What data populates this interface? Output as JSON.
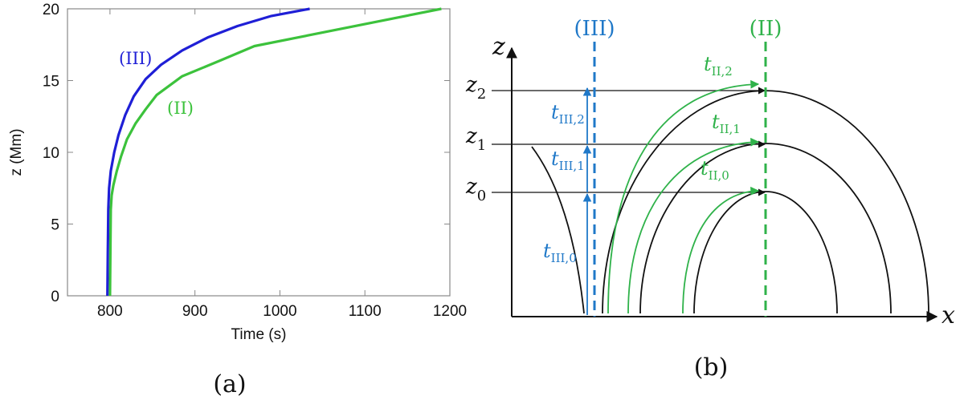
{
  "chart_data": [
    {
      "type": "line",
      "panel_label": "(a)",
      "title": "",
      "xlabel": "Time (s)",
      "ylabel": "z (Mm)",
      "xlim": [
        750,
        1200
      ],
      "ylim": [
        0,
        20
      ],
      "xticks": [
        800,
        900,
        1000,
        1100,
        1200
      ],
      "yticks": [
        0,
        5,
        10,
        15,
        20
      ],
      "grid": false,
      "series": [
        {
          "name": "(III)",
          "color": "#1f1fd6",
          "x": [
            797,
            797.5,
            798,
            799,
            801,
            805,
            810,
            818,
            828,
            842,
            860,
            885,
            915,
            950,
            990,
            1035
          ],
          "y": [
            0,
            3,
            6,
            7.5,
            8.7,
            10,
            11.2,
            12.6,
            13.9,
            15.1,
            16.1,
            17.1,
            18.0,
            18.8,
            19.5,
            20
          ]
        },
        {
          "name": "(II)",
          "color": "#3cc23c",
          "x": [
            800,
            800.5,
            801,
            802,
            804,
            808,
            813,
            820,
            830,
            842,
            855,
            885,
            930,
            970,
            1190
          ],
          "y": [
            0,
            3,
            6,
            7,
            7.7,
            8.7,
            9.7,
            10.9,
            12.0,
            13.0,
            14.0,
            15.3,
            16.4,
            17.4,
            20
          ]
        }
      ]
    },
    {
      "type": "diagram",
      "panel_label": "(b)",
      "x_axis_label": "x",
      "z_axis_label": "z",
      "line_labels": {
        "III": "(III)",
        "II": "(II)"
      },
      "heights": [
        "z",
        "z",
        "z"
      ],
      "height_subscripts": [
        "0",
        "1",
        "2"
      ],
      "tIII_labels": [
        {
          "t": "t",
          "sub": "III,0"
        },
        {
          "t": "t",
          "sub": "III,1"
        },
        {
          "t": "t",
          "sub": "III,2"
        }
      ],
      "tII_labels": [
        {
          "t": "t",
          "sub": "II,0"
        },
        {
          "t": "t",
          "sub": "II,1"
        },
        {
          "t": "t",
          "sub": "II,2"
        }
      ],
      "colors": {
        "III": "#1f78c8",
        "II": "#2fb24a",
        "loops": "#111111"
      }
    }
  ]
}
